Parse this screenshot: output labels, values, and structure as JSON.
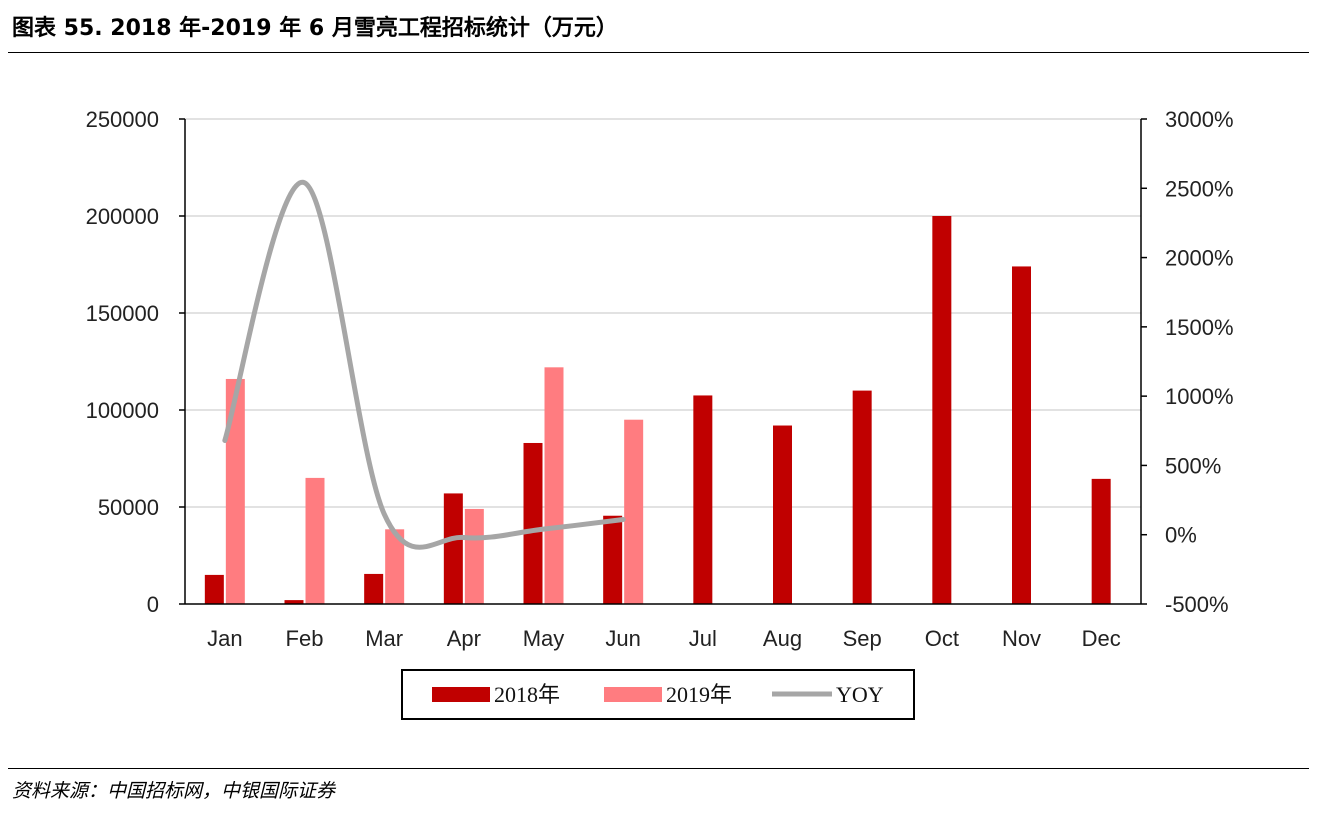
{
  "title": "图表 55. 2018 年-2019 年 6 月雪亮工程招标统计（万元）",
  "source": "资料来源：中国招标网，中银国际证券",
  "chart_data": {
    "type": "bar",
    "categories": [
      "Jan",
      "Feb",
      "Mar",
      "Apr",
      "May",
      "Jun",
      "Jul",
      "Aug",
      "Sep",
      "Oct",
      "Nov",
      "Dec"
    ],
    "series": [
      {
        "name": "2018年",
        "type": "bar",
        "axis": "left",
        "color": "#C00000",
        "values": [
          15000,
          2000,
          15500,
          57000,
          83000,
          45500,
          107500,
          92000,
          110000,
          200000,
          174000,
          64500
        ]
      },
      {
        "name": "2019年",
        "type": "bar",
        "axis": "left",
        "color": "#FF7C80",
        "values": [
          116000,
          65000,
          38500,
          49000,
          122000,
          95000,
          null,
          null,
          null,
          null,
          null,
          null
        ]
      },
      {
        "name": "YOY",
        "type": "line",
        "axis": "right",
        "color": "#A6A6A6",
        "values": [
          680,
          2540,
          150,
          -20,
          40,
          110,
          null,
          null,
          null,
          null,
          null,
          null
        ]
      }
    ],
    "y_left": {
      "min": 0,
      "max": 250000,
      "ticks": [
        0,
        50000,
        100000,
        150000,
        200000,
        250000
      ],
      "tick_labels": [
        "0",
        "50000",
        "100000",
        "150000",
        "200000",
        "250000"
      ]
    },
    "y_right": {
      "min": -500,
      "max": 3000,
      "ticks": [
        -500,
        0,
        500,
        1000,
        1500,
        2000,
        2500,
        3000
      ],
      "tick_labels": [
        "-500%",
        "0%",
        "500%",
        "1000%",
        "1500%",
        "2000%",
        "2500%",
        "3000%"
      ]
    },
    "grid": true,
    "legend_position": "bottom"
  }
}
